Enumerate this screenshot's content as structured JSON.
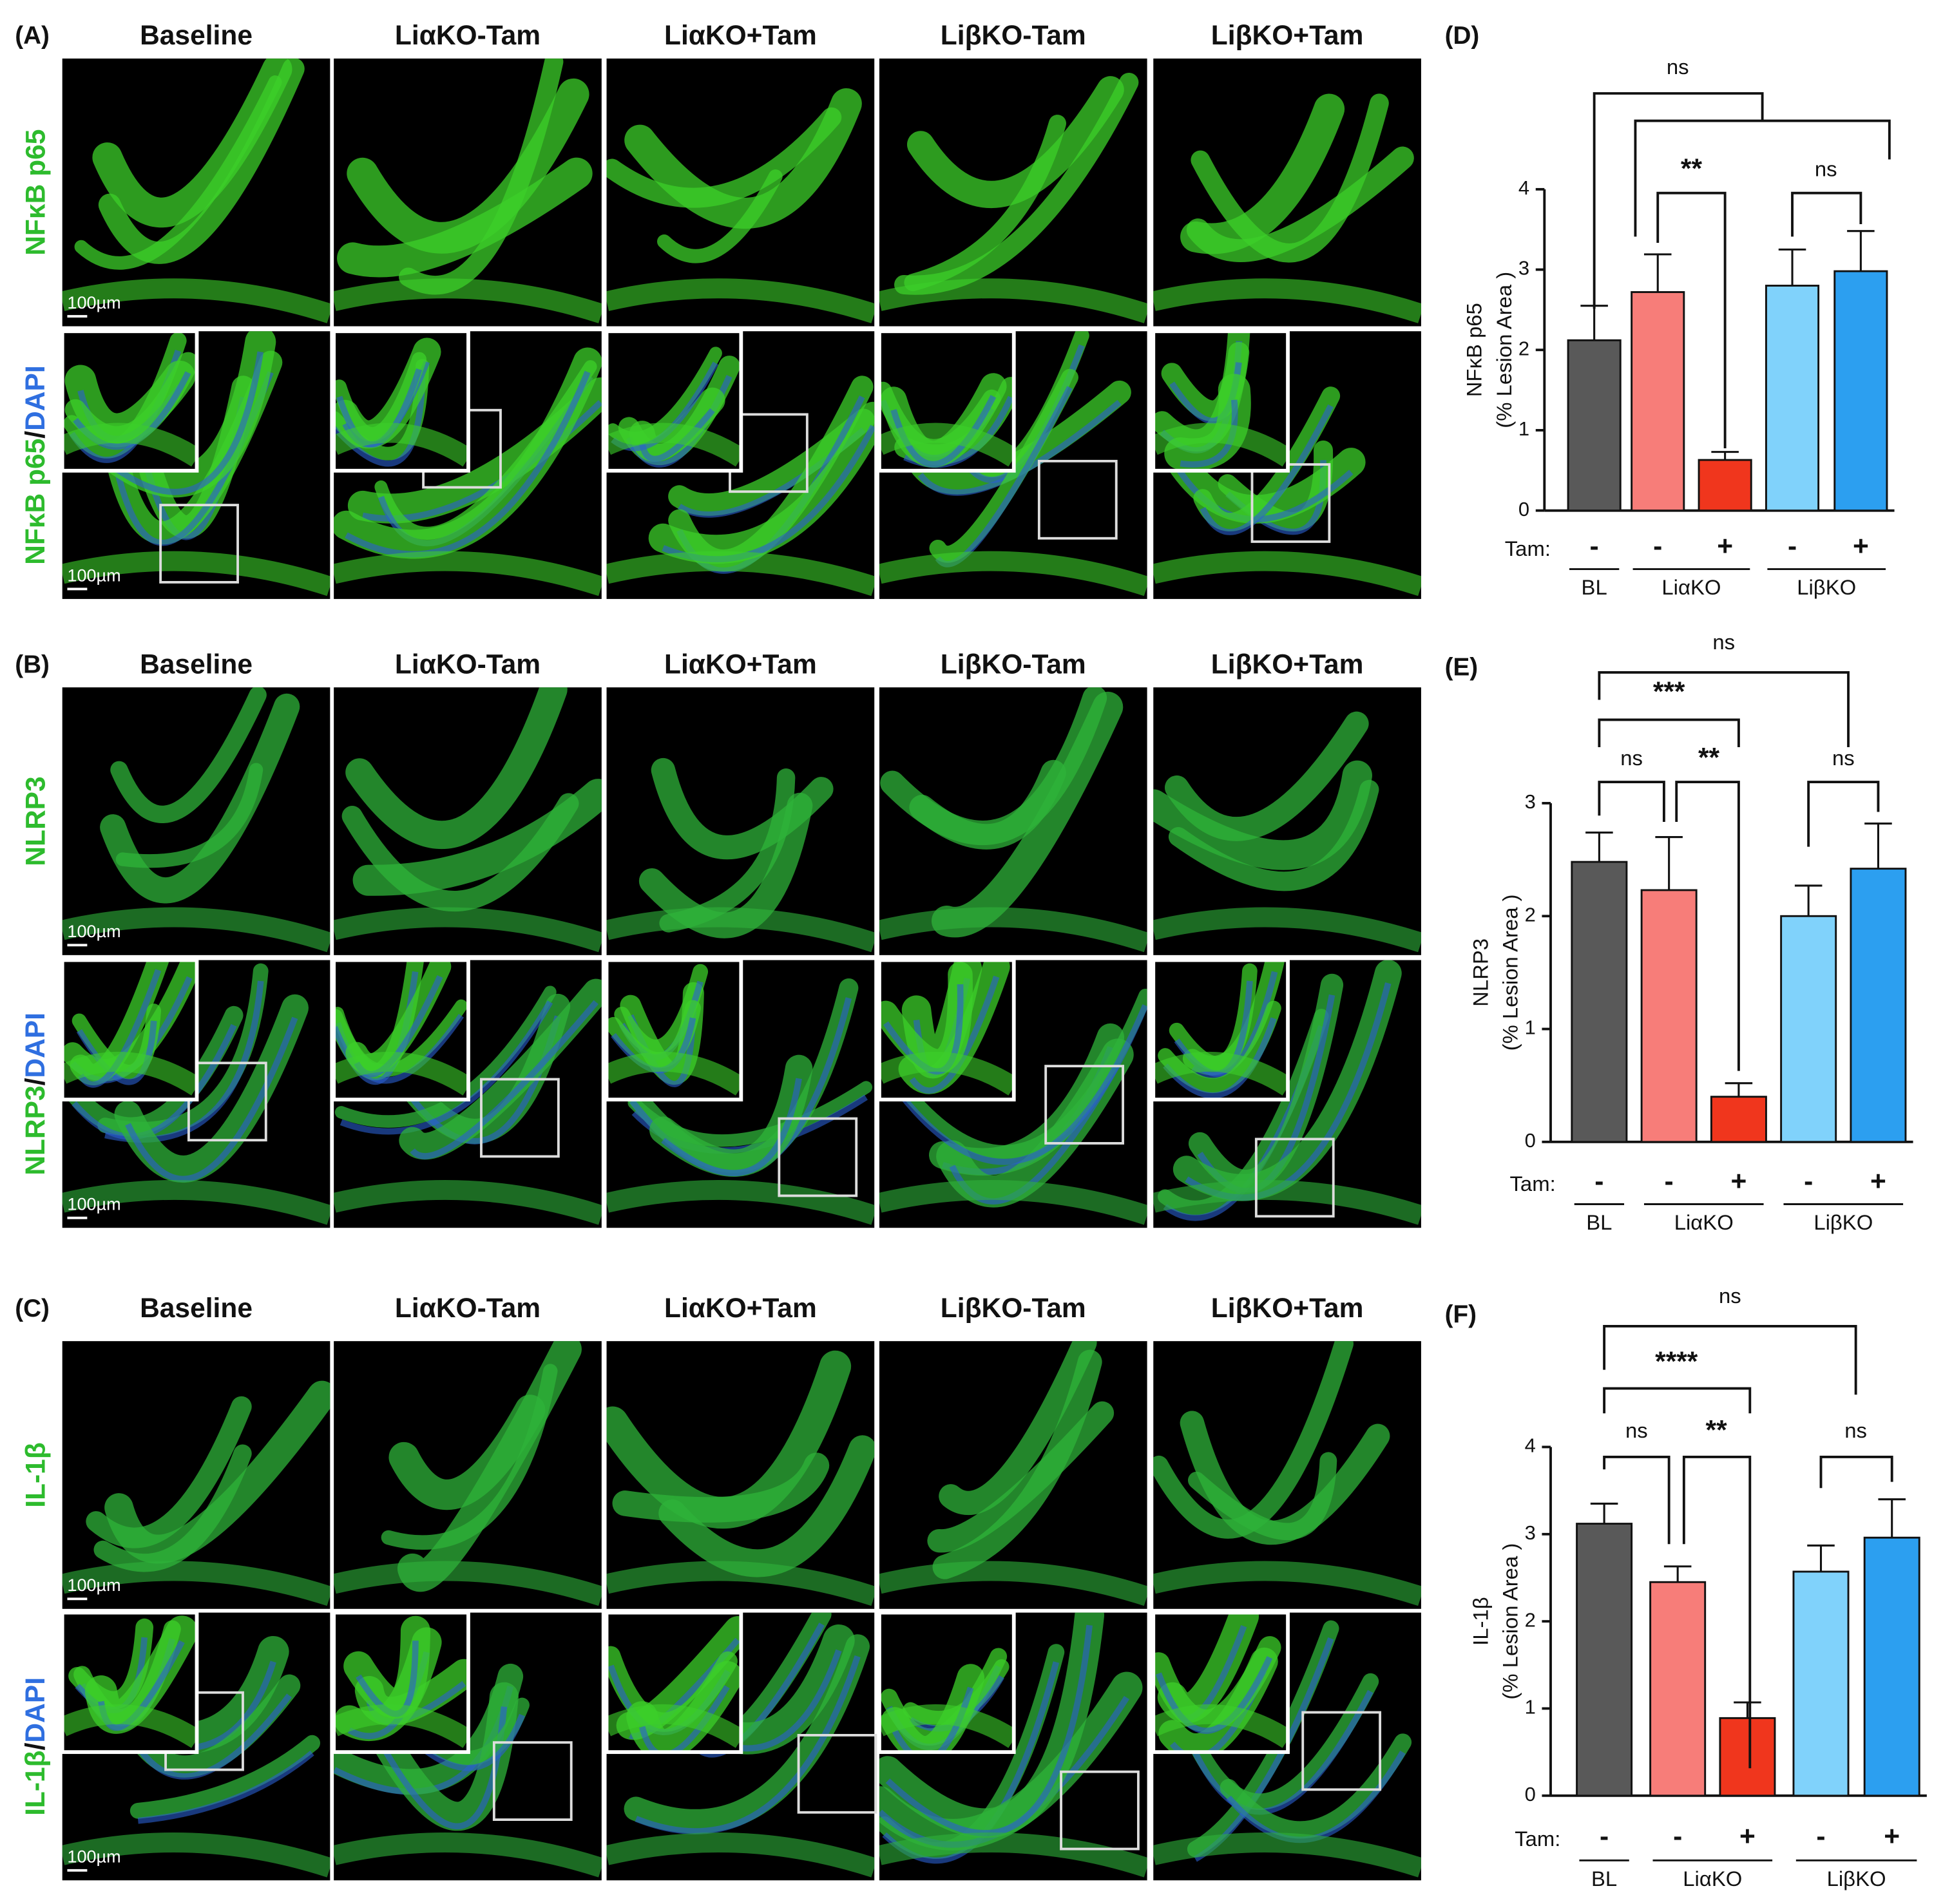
{
  "figure_panels": [
    {
      "label": "(A)",
      "columns": [
        "Baseline",
        "LiαKO-Tam",
        "LiαKO+Tam",
        "LiβKO-Tam",
        "LiβKO+Tam"
      ],
      "top_row_label": "NFκB p65",
      "bottom_row_label": {
        "marker": "NFκB p65",
        "sep": "/",
        "counterstain": "DAPI"
      },
      "scale_bar": "100µm"
    },
    {
      "label": "(B)",
      "columns": [
        "Baseline",
        "LiαKO-Tam",
        "LiαKO+Tam",
        "LiβKO-Tam",
        "LiβKO+Tam"
      ],
      "top_row_label": "NLRP3",
      "bottom_row_label": {
        "marker": "NLRP3",
        "sep": "/",
        "counterstain": "DAPI"
      },
      "scale_bar": "100µm"
    },
    {
      "label": "(C)",
      "columns": [
        "Baseline",
        "LiαKO-Tam",
        "LiαKO+Tam",
        "LiβKO-Tam",
        "LiβKO+Tam"
      ],
      "top_row_label": "IL-1β",
      "bottom_row_label": {
        "marker": "IL-1β",
        "sep": "/",
        "counterstain": "DAPI"
      },
      "scale_bar": "100µm"
    }
  ],
  "chart_data": [
    {
      "type": "bar",
      "panel_label": "(D)",
      "ylabel": [
        "NFκB p65",
        "(% Lesion Area )"
      ],
      "ylim": [
        0,
        4
      ],
      "yticks": [
        0,
        1,
        2,
        3,
        4
      ],
      "values": [
        2.12,
        2.72,
        0.63,
        2.8,
        2.98
      ],
      "errors": [
        0.43,
        0.47,
        0.1,
        0.45,
        0.5
      ],
      "colors": [
        "#595959",
        "#f77d79",
        "#f0361d",
        "#80d2fb",
        "#2c9ff0"
      ],
      "tam_label": "Tam:",
      "tam": [
        "-",
        "-",
        "+",
        "-",
        "+"
      ],
      "groups": [
        "BL",
        "LiαKO",
        "LiβKO"
      ],
      "annotations": [
        "ns",
        "**",
        "ns"
      ]
    },
    {
      "type": "bar",
      "panel_label": "(E)",
      "ylabel": [
        "NLRP3",
        "(% Lesion Area )"
      ],
      "ylim": [
        0,
        3
      ],
      "yticks": [
        0,
        1,
        2,
        3
      ],
      "values": [
        2.48,
        2.23,
        0.4,
        2.0,
        2.42
      ],
      "errors": [
        0.26,
        0.47,
        0.12,
        0.27,
        0.4
      ],
      "colors": [
        "#595959",
        "#f77d79",
        "#f0361d",
        "#80d2fb",
        "#2c9ff0"
      ],
      "tam_label": "Tam:",
      "tam": [
        "-",
        "-",
        "+",
        "-",
        "+"
      ],
      "groups": [
        "BL",
        "LiαKO",
        "LiβKO"
      ],
      "annotations": [
        "ns",
        "***",
        "ns",
        "**",
        "ns"
      ]
    },
    {
      "type": "bar",
      "panel_label": "(F)",
      "ylabel": [
        "IL-1β",
        "(% Lesion Area )"
      ],
      "ylim": [
        0,
        4
      ],
      "yticks": [
        0,
        1,
        2,
        3,
        4
      ],
      "values": [
        3.12,
        2.45,
        0.89,
        2.57,
        2.96
      ],
      "errors": [
        0.23,
        0.18,
        0.18,
        0.3,
        0.44
      ],
      "colors": [
        "#595959",
        "#f77d79",
        "#f0361d",
        "#80d2fb",
        "#2c9ff0"
      ],
      "tam_label": "Tam:",
      "tam": [
        "-",
        "-",
        "+",
        "-",
        "+"
      ],
      "groups": [
        "BL",
        "LiαKO",
        "LiβKO"
      ],
      "annotations": [
        "ns",
        "****",
        "ns",
        "**",
        "ns"
      ]
    }
  ]
}
